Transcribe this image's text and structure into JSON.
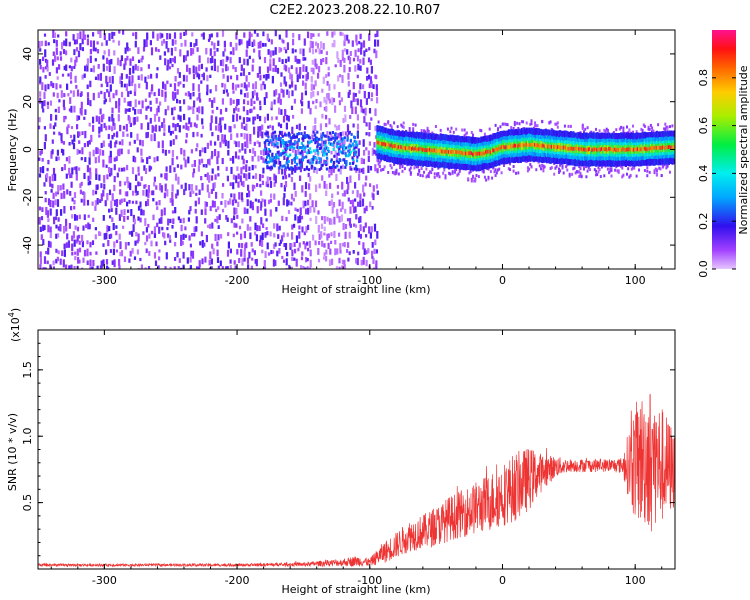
{
  "title": "C2E2.2023.208.22.10.R07",
  "chart_data": [
    {
      "type": "heatmap",
      "xlabel": "Height of straight line (km)",
      "ylabel": "Frequency (Hz)",
      "xlim": [
        -350,
        130
      ],
      "ylim": [
        -50,
        50
      ],
      "xticks": [
        -300,
        -200,
        -100,
        0,
        100
      ],
      "yticks": [
        40,
        20,
        0,
        -20,
        -40
      ],
      "colorbar": {
        "label": "Normalized spectral amplitude",
        "range": [
          0.0,
          1.0
        ],
        "ticks": [
          "0.0",
          "0.2",
          "0.4",
          "0.6",
          "0.8"
        ],
        "tick_values": [
          0.0,
          0.2,
          0.4,
          0.6,
          0.8
        ]
      },
      "regions": [
        {
          "x_range": [
            -350,
            -95
          ],
          "pattern": "broadband noise",
          "amplitude": 0.1
        },
        {
          "x_range": [
            -180,
            -110
          ],
          "pattern": "weak signal near 0 Hz",
          "amplitude": 0.3
        },
        {
          "x_range": [
            -95,
            130
          ],
          "pattern": "narrow signal near 0 Hz",
          "amplitude": 0.9
        }
      ],
      "signal_track": {
        "x": [
          -95,
          -80,
          -60,
          -40,
          -20,
          -10,
          0,
          20,
          40,
          60,
          80,
          100,
          130
        ],
        "y": [
          3,
          1,
          0,
          -1,
          -2,
          -1,
          1,
          2,
          1,
          0,
          0,
          0,
          1
        ]
      }
    },
    {
      "type": "line",
      "xlabel": "Height of straight line (km)",
      "ylabel": "SNR (10 * v/v)",
      "scale_label": "(x10",
      "scale_exponent": "4",
      "xlim": [
        -350,
        130
      ],
      "ylim": [
        0,
        18000
      ],
      "xticks": [
        -300,
        -200,
        -100,
        0,
        100
      ],
      "yticks": [
        5000,
        10000,
        15000
      ],
      "ytick_labels": [
        "0.5",
        "1.0",
        "1.5"
      ],
      "color": "#ee3333",
      "series": [
        {
          "x": [
            -350,
            -300,
            -250,
            -200,
            -150,
            -120,
            -110,
            -100,
            -90,
            -80,
            -70,
            -60,
            -50,
            -40,
            -30,
            -20,
            -10,
            0,
            10,
            20,
            30,
            40,
            50,
            60,
            70,
            80,
            90,
            100,
            110,
            120,
            130
          ],
          "y": [
            300,
            300,
            300,
            300,
            350,
            500,
            600,
            500,
            1200,
            1800,
            2500,
            2800,
            3200,
            3800,
            4200,
            4600,
            5000,
            5600,
            6200,
            6800,
            7300,
            7700,
            7800,
            7800,
            7800,
            7800,
            7800,
            8000,
            8500,
            7800,
            7500
          ],
          "spread": [
            100,
            100,
            100,
            100,
            150,
            300,
            400,
            300,
            800,
            1000,
            1200,
            1300,
            1500,
            1700,
            1800,
            2000,
            2200,
            2400,
            2600,
            2400,
            1400,
            800,
            500,
            500,
            500,
            500,
            600,
            4500,
            5500,
            4500,
            3000
          ]
        }
      ]
    }
  ]
}
